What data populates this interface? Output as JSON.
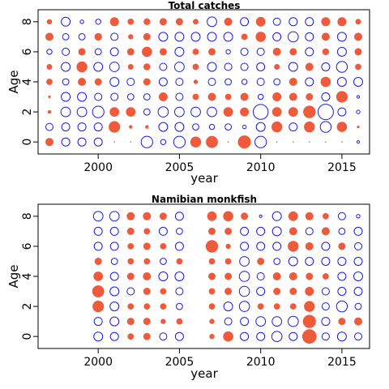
{
  "colors": {
    "positive": "#EE5A3C",
    "negative": "#1A1AE6",
    "axis": "#000000"
  },
  "chart_data": [
    {
      "type": "scatter",
      "title": "Total catches",
      "xlabel": "year",
      "ylabel": "Age",
      "xlim": [
        1996.3,
        2016.7
      ],
      "ylim": [
        -0.8,
        8.8
      ],
      "xticks": [
        "2000",
        "2005",
        "2010",
        "2015"
      ],
      "yticks": [
        "0",
        "2",
        "4",
        "6",
        "8"
      ],
      "x": [
        1997,
        1998,
        1999,
        2000,
        2001,
        2002,
        2003,
        2004,
        2005,
        2006,
        2007,
        2008,
        2009,
        2010,
        2011,
        2012,
        2013,
        2014,
        2015,
        2016
      ],
      "ages": [
        0,
        1,
        2,
        3,
        4,
        5,
        6,
        7,
        8
      ],
      "residuals": [
        [
          0.5,
          -0.5,
          -0.5,
          -0.5,
          0,
          0,
          -1.0,
          -0.2,
          -1.0,
          0.9,
          1.1,
          0,
          1.3,
          -1.0,
          0,
          0,
          0,
          0,
          0,
          -0.05
        ],
        [
          -0.4,
          -0.5,
          -0.5,
          -0.5,
          1.0,
          0.1,
          0.1,
          -0.6,
          -0.6,
          -0.3,
          -0.2,
          -0.3,
          -0.1,
          -0.6,
          0.9,
          -0.5,
          0.9,
          -0.9,
          0.8,
          0.05
        ],
        [
          0.1,
          -0.7,
          -0.7,
          -1.0,
          0.7,
          0.7,
          -0.3,
          -0.8,
          -0.7,
          -0.7,
          -0.7,
          0.7,
          0.6,
          -1.7,
          0.7,
          0.7,
          1.2,
          -1.8,
          -0.5,
          -0.1
        ],
        [
          0.05,
          -0.6,
          -0.6,
          -0.4,
          -0.4,
          -0.3,
          -0.3,
          0.6,
          -0.4,
          0.3,
          0.5,
          0.3,
          0.5,
          -0.2,
          0.6,
          0.5,
          0.4,
          -0.5,
          1.0,
          -0.05
        ],
        [
          0.3,
          -0.3,
          0.5,
          0.4,
          -0.6,
          -0.4,
          0.4,
          -0.5,
          -0.4,
          0.15,
          -0.4,
          -0.3,
          -0.2,
          -0.4,
          -0.3,
          0.5,
          -0.5,
          0.8,
          -0.6,
          -0.6
        ],
        [
          0.25,
          -0.6,
          0.9,
          -0.6,
          -0.7,
          0.25,
          0.35,
          -0.4,
          -0.7,
          0.3,
          -0.6,
          -0.4,
          -0.4,
          -0.5,
          0.25,
          -0.6,
          0.5,
          -0.5,
          -0.9,
          0.3
        ],
        [
          -0.2,
          -0.4,
          0.4,
          -0.3,
          -0.5,
          0.4,
          0.8,
          0.4,
          -0.6,
          0.3,
          0.4,
          -0.15,
          -0.4,
          -0.4,
          0.5,
          0.4,
          -0.5,
          0.35,
          -0.6,
          0.4
        ],
        [
          0.5,
          -0.3,
          -0.3,
          0.45,
          -0.4,
          0.2,
          0.4,
          -0.6,
          -0.6,
          -0.6,
          -0.6,
          -0.6,
          0.3,
          0.8,
          -0.5,
          -0.8,
          -0.5,
          0.5,
          -0.6,
          0.5
        ],
        [
          0.2,
          -0.6,
          -0.1,
          -0.2,
          0.6,
          0.3,
          0.35,
          0.4,
          0.4,
          0.25,
          -0.7,
          0.5,
          -0.5,
          0.7,
          -0.4,
          -0.5,
          -0.5,
          0.6,
          0.6,
          0.25
        ]
      ]
    },
    {
      "type": "scatter",
      "title": "Namibian monkfish",
      "xlabel": "year",
      "ylabel": "Age",
      "xlim": [
        1996.3,
        2016.7
      ],
      "ylim": [
        -0.8,
        8.8
      ],
      "xticks": [
        "2000",
        "2005",
        "2010",
        "2015"
      ],
      "yticks": [
        "0",
        "2",
        "4",
        "6",
        "8"
      ],
      "x": [
        2000,
        2001,
        2002,
        2003,
        2004,
        2005,
        2007,
        2008,
        2009,
        2010,
        2011,
        2012,
        2013,
        2014,
        2015,
        2016
      ],
      "ages": [
        0,
        1,
        2,
        3,
        4,
        5,
        6,
        7,
        8
      ],
      "residuals": [
        [
          -0.6,
          -0.5,
          0.3,
          0.4,
          -0.4,
          -0.5,
          0.2,
          0.8,
          -0.5,
          -0.5,
          -0.8,
          -0.5,
          1.6,
          -0.4,
          -0.6,
          -0.4
        ],
        [
          -0.5,
          -0.6,
          0.4,
          0.4,
          0.2,
          0.3,
          0.2,
          -0.4,
          -0.5,
          -0.7,
          -0.7,
          -0.8,
          1.3,
          -0.5,
          0.4,
          0.5
        ],
        [
          1.0,
          -0.6,
          0.3,
          0.3,
          0.3,
          -0.3,
          0.3,
          -0.6,
          -0.8,
          0.3,
          0.3,
          0.3,
          0.9,
          -0.4,
          -0.9,
          -0.3
        ],
        [
          1.1,
          -0.6,
          -0.4,
          0.4,
          0.3,
          -0.4,
          0.3,
          0.4,
          -0.8,
          -0.5,
          0.4,
          0.4,
          0.6,
          -0.4,
          -0.5,
          -0.5
        ],
        [
          0.7,
          -0.5,
          0.4,
          0.5,
          -0.6,
          -0.6,
          0.4,
          0.4,
          -0.8,
          -0.4,
          0.5,
          0.5,
          0.4,
          0.3,
          -0.5,
          -0.6
        ],
        [
          0.4,
          -0.3,
          0.3,
          0.3,
          -0.3,
          0.3,
          0.3,
          0.3,
          -0.7,
          0.4,
          -0.3,
          -0.6,
          -0.5,
          -0.5,
          -0.5,
          -0.5
        ],
        [
          -0.5,
          -0.5,
          0.3,
          0.4,
          0.3,
          -0.5,
          1.2,
          0.2,
          -0.5,
          -0.5,
          -0.5,
          0.9,
          0.5,
          -0.5,
          0.4,
          -0.4
        ],
        [
          -0.5,
          -0.5,
          0.4,
          0.3,
          -0.5,
          -0.3,
          0.4,
          0.4,
          -0.5,
          -0.5,
          -0.6,
          0.5,
          -0.4,
          0.5,
          -0.3,
          -0.5
        ],
        [
          -0.7,
          -0.7,
          0.5,
          0.5,
          0.4,
          -0.5,
          0.7,
          0.8,
          0.4,
          -0.05,
          -0.6,
          0.7,
          0.5,
          0.3,
          -0.4,
          -0.1
        ]
      ]
    }
  ]
}
